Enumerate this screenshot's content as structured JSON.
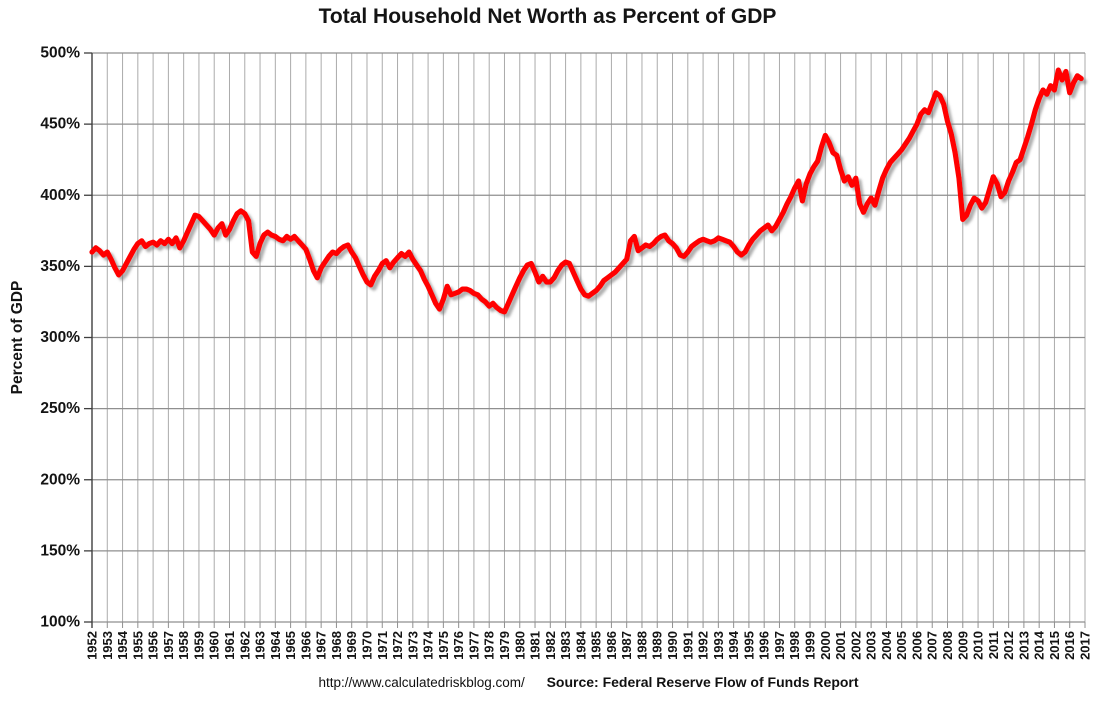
{
  "title": "Total Household Net Worth as Percent of GDP",
  "footer": {
    "url": "http://www.calculatedriskblog.com/",
    "source": "Source: Federal Reserve Flow of Funds Report"
  },
  "chart_data": {
    "type": "line",
    "title": "Total Household Net Worth as Percent of GDP",
    "xlabel": "",
    "ylabel": "Percent of GDP",
    "xlim": [
      1952,
      2017
    ],
    "ylim": [
      100,
      500
    ],
    "grid": true,
    "legend": "none",
    "x_ticks": [
      1952,
      1953,
      1954,
      1955,
      1956,
      1957,
      1958,
      1959,
      1960,
      1961,
      1962,
      1963,
      1964,
      1965,
      1966,
      1967,
      1968,
      1969,
      1970,
      1971,
      1972,
      1973,
      1974,
      1975,
      1976,
      1977,
      1978,
      1979,
      1980,
      1981,
      1982,
      1983,
      1984,
      1985,
      1986,
      1987,
      1988,
      1989,
      1990,
      1991,
      1992,
      1993,
      1994,
      1995,
      1996,
      1997,
      1998,
      1999,
      2000,
      2001,
      2002,
      2003,
      2004,
      2005,
      2006,
      2007,
      2008,
      2009,
      2010,
      2011,
      2012,
      2013,
      2014,
      2015,
      2016,
      2017
    ],
    "y_ticks": [
      100,
      150,
      200,
      250,
      300,
      350,
      400,
      450,
      500
    ],
    "y_tick_labels": [
      "100%",
      "150%",
      "200%",
      "250%",
      "300%",
      "350%",
      "400%",
      "450%",
      "500%"
    ],
    "colors": {
      "line": "#ff0000",
      "grid": "#ababab",
      "grid_h": "#8f8f8f",
      "axis": "#3f3f3f",
      "text": "#141414",
      "background": "#ffffff"
    },
    "series": [
      {
        "name": "Household net worth as percent of GDP",
        "frequency": "quarterly",
        "x_start": 1952.0,
        "x_step": 0.25,
        "color": "#ff0000",
        "values": [
          360,
          363,
          361,
          358,
          360,
          355,
          349,
          344,
          347,
          352,
          357,
          362,
          366,
          368,
          364,
          366,
          367,
          365,
          368,
          366,
          369,
          366,
          370,
          363,
          368,
          374,
          380,
          386,
          385,
          382,
          379,
          376,
          372,
          377,
          380,
          372,
          376,
          382,
          387,
          389,
          387,
          382,
          360,
          357,
          366,
          372,
          374,
          372,
          371,
          369,
          368,
          371,
          369,
          371,
          368,
          365,
          362,
          355,
          347,
          342,
          349,
          353,
          357,
          360,
          359,
          362,
          364,
          365,
          360,
          356,
          350,
          344,
          339,
          337,
          343,
          347,
          352,
          354,
          349,
          353,
          356,
          359,
          357,
          360,
          355,
          351,
          347,
          341,
          336,
          330,
          324,
          320,
          327,
          336,
          330,
          331,
          332,
          334,
          334,
          333,
          331,
          330,
          327,
          325,
          322,
          324,
          321,
          319,
          318,
          324,
          330,
          336,
          342,
          347,
          351,
          352,
          346,
          339,
          343,
          339,
          339,
          342,
          347,
          351,
          353,
          352,
          346,
          340,
          334,
          330,
          329,
          331,
          333,
          336,
          340,
          342,
          344,
          346,
          349,
          352,
          355,
          368,
          371,
          361,
          363,
          365,
          364,
          366,
          369,
          371,
          372,
          368,
          366,
          363,
          358,
          357,
          360,
          364,
          366,
          368,
          369,
          368,
          367,
          368,
          370,
          369,
          368,
          367,
          364,
          360,
          358,
          360,
          365,
          369,
          372,
          375,
          377,
          379,
          375,
          378,
          383,
          388,
          394,
          399,
          405,
          410,
          396,
          408,
          415,
          420,
          424,
          434,
          442,
          437,
          430,
          428,
          418,
          410,
          413,
          407,
          412,
          394,
          388,
          394,
          398,
          393,
          403,
          412,
          418,
          423,
          426,
          429,
          432,
          436,
          440,
          445,
          450,
          457,
          460,
          458,
          465,
          472,
          470,
          464,
          452,
          443,
          430,
          412,
          383,
          386,
          393,
          398,
          396,
          391,
          395,
          404,
          413,
          408,
          399,
          402,
          410,
          416,
          423,
          425,
          433,
          441,
          450,
          460,
          468,
          474,
          471,
          477,
          474,
          488,
          481,
          487,
          472,
          479,
          484,
          482
        ]
      }
    ]
  }
}
